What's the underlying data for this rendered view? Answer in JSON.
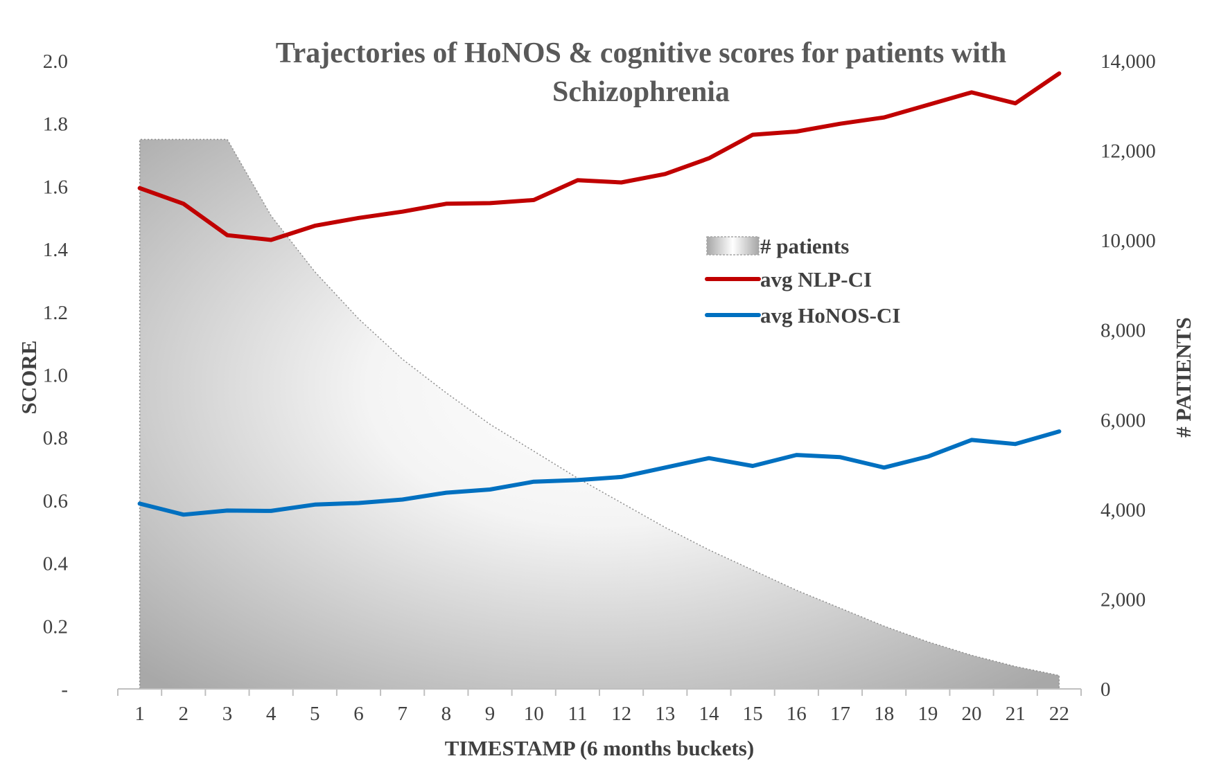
{
  "chart_data": {
    "type": "line",
    "title_line1": "Trajectories of HoNOS & cognitive scores for patients with",
    "title_line2": "Schizophrenia",
    "xlabel": "TIMESTAMP (6 months buckets)",
    "ylabel_left": "SCORE",
    "ylabel_right": "# PATIENTS",
    "categories": [
      "1",
      "2",
      "3",
      "4",
      "5",
      "6",
      "7",
      "8",
      "9",
      "10",
      "11",
      "12",
      "13",
      "14",
      "15",
      "16",
      "17",
      "18",
      "19",
      "20",
      "21",
      "22"
    ],
    "y_left": {
      "min": 0,
      "max": 2.0,
      "ticks": [
        0,
        0.2,
        0.4,
        0.6,
        0.8,
        1.0,
        1.2,
        1.4,
        1.6,
        1.8,
        2.0
      ],
      "tick_labels": [
        "-",
        "0.2",
        "0.4",
        "0.6",
        "0.8",
        "1.0",
        "1.2",
        "1.4",
        "1.6",
        "1.8",
        "2.0"
      ]
    },
    "y_right": {
      "min": 0,
      "max": 14000,
      "ticks": [
        0,
        2000,
        4000,
        6000,
        8000,
        10000,
        12000,
        14000
      ],
      "tick_labels": [
        "0",
        "2,000",
        "4,000",
        "6,000",
        "8,000",
        "10,000",
        "12,000",
        "14,000"
      ]
    },
    "series": [
      {
        "name": "# patients",
        "kind": "area",
        "axis": "right",
        "color": "#a6a6a6",
        "values": [
          12250,
          12250,
          12250,
          10550,
          9300,
          8250,
          7350,
          6600,
          5900,
          5300,
          4700,
          4150,
          3600,
          3100,
          2650,
          2200,
          1800,
          1400,
          1050,
          750,
          500,
          300
        ]
      },
      {
        "name": "avg NLP-CI",
        "kind": "line",
        "axis": "left",
        "color": "#c00000",
        "values": [
          1.595,
          1.545,
          1.445,
          1.43,
          1.475,
          1.5,
          1.52,
          1.545,
          1.547,
          1.557,
          1.62,
          1.613,
          1.64,
          1.69,
          1.765,
          1.775,
          1.8,
          1.82,
          1.86,
          1.9,
          1.865,
          1.96
        ]
      },
      {
        "name": "avg HoNOS-CI",
        "kind": "line",
        "axis": "left",
        "color": "#0070c0",
        "values": [
          0.59,
          0.555,
          0.568,
          0.567,
          0.587,
          0.592,
          0.603,
          0.625,
          0.635,
          0.66,
          0.665,
          0.675,
          0.705,
          0.735,
          0.71,
          0.745,
          0.738,
          0.705,
          0.74,
          0.793,
          0.78,
          0.82
        ]
      }
    ],
    "legend_position": "center-right",
    "grid": false
  }
}
